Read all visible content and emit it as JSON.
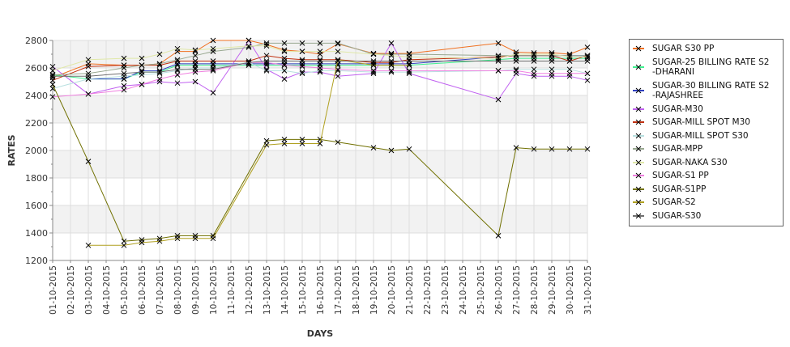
{
  "chart_data": {
    "type": "line",
    "title": "",
    "xlabel": "DAYS",
    "ylabel": "RATES",
    "ylim": [
      1200,
      2800
    ],
    "yticks": [
      1200,
      1400,
      1600,
      1800,
      2000,
      2200,
      2400,
      2600,
      2800
    ],
    "grid": true,
    "legend_position": "right",
    "categories": [
      "01-10-2015",
      "02-10-2015",
      "03-10-2015",
      "04-10-2015",
      "05-10-2015",
      "06-10-2015",
      "07-10-2015",
      "08-10-2015",
      "09-10-2015",
      "10-10-2015",
      "11-10-2015",
      "12-10-2015",
      "13-10-2015",
      "14-10-2015",
      "15-10-2015",
      "16-10-2015",
      "17-10-2015",
      "18-10-2015",
      "19-10-2015",
      "20-10-2015",
      "21-10-2015",
      "22-10-2015",
      "23-10-2015",
      "24-10-2015",
      "25-10-2015",
      "26-10-2015",
      "27-10-2015",
      "28-10-2015",
      "29-10-2015",
      "30-10-2015",
      "31-10-2015"
    ],
    "series": [
      {
        "name": "SUGAR S30 PP",
        "color": "#f07020",
        "values": [
          2530,
          null,
          2630,
          null,
          2620,
          2620,
          2630,
          2720,
          2720,
          2800,
          null,
          2800,
          2770,
          2730,
          2720,
          2700,
          2775,
          null,
          2705,
          2705,
          2705,
          null,
          null,
          null,
          null,
          2780,
          2715,
          2710,
          2710,
          2700,
          2750
        ]
      },
      {
        "name": "SUGAR-25 BILLING RATE S2\n-DHARANI",
        "color": "#40f090",
        "values": [
          2550,
          null,
          2520,
          null,
          2520,
          2570,
          2570,
          2620,
          2620,
          2620,
          null,
          2620,
          2620,
          2620,
          2620,
          2620,
          2620,
          null,
          2620,
          2620,
          2620,
          null,
          null,
          null,
          null,
          2660,
          2670,
          2670,
          2670,
          2670,
          2670
        ]
      },
      {
        "name": "SUGAR-30 BILLING RATE S2\n-RAJASHREE",
        "color": "#3040c0",
        "values": [
          null,
          null,
          2520,
          null,
          2520,
          2580,
          2580,
          2630,
          2630,
          2630,
          null,
          2630,
          2630,
          2630,
          2630,
          2630,
          2630,
          null,
          2630,
          2630,
          2630,
          null,
          null,
          null,
          null,
          2680,
          2690,
          2690,
          2690,
          2690,
          2690
        ]
      },
      {
        "name": "SUGAR-M30",
        "color": "#c060f0",
        "values": [
          2610,
          null,
          2410,
          null,
          2470,
          2480,
          2500,
          2490,
          2500,
          2420,
          null,
          2800,
          2590,
          2520,
          2570,
          2570,
          2540,
          null,
          2560,
          2780,
          2560,
          null,
          null,
          null,
          null,
          2370,
          2560,
          2540,
          2540,
          2540,
          2510
        ]
      },
      {
        "name": "SUGAR-MILL SPOT M30",
        "color": "#c03010",
        "values": [
          2510,
          null,
          2610,
          null,
          2620,
          2620,
          2620,
          2650,
          2650,
          2650,
          null,
          2650,
          2690,
          2670,
          2660,
          2660,
          2660,
          null,
          2640,
          2640,
          2660,
          null,
          null,
          null,
          null,
          2680,
          2690,
          2690,
          2690,
          2650,
          2690
        ]
      },
      {
        "name": "SUGAR-MILL SPOT S30",
        "color": "#b8e0e0",
        "values": [
          2450,
          null,
          2520,
          null,
          2540,
          2550,
          2560,
          2580,
          2600,
          2600,
          null,
          2640,
          2580,
          2580,
          2560,
          2580,
          2580,
          null,
          2570,
          2570,
          2570,
          null,
          null,
          null,
          null,
          2580,
          2590,
          2590,
          2590,
          2590,
          2560
        ]
      },
      {
        "name": "SUGAR-MPP",
        "color": "#98a890",
        "values": [
          2550,
          null,
          2560,
          null,
          2600,
          2620,
          2630,
          2660,
          2690,
          2720,
          null,
          2750,
          2780,
          2780,
          2780,
          2780,
          2780,
          null,
          2700,
          2700,
          2700,
          null,
          null,
          null,
          null,
          2690,
          2690,
          2690,
          2690,
          2690,
          2690
        ]
      },
      {
        "name": "SUGAR-NAKA S30",
        "color": "#e0e8a8",
        "values": [
          2580,
          null,
          2660,
          null,
          2670,
          2670,
          2700,
          2740,
          2730,
          2740,
          null,
          2760,
          2760,
          2720,
          2720,
          2720,
          2720,
          null,
          2700,
          2690,
          2680,
          null,
          null,
          null,
          null,
          2670,
          2700,
          2700,
          2700,
          2680,
          2680
        ]
      },
      {
        "name": "SUGAR-S1 PP",
        "color": "#f080e0",
        "values": [
          2390,
          null,
          2410,
          null,
          2440,
          2480,
          2520,
          2550,
          2570,
          2580,
          null,
          2640,
          2640,
          2620,
          2610,
          2600,
          2590,
          null,
          2580,
          2580,
          2580,
          null,
          null,
          null,
          null,
          2580,
          2580,
          2560,
          2560,
          2560,
          2560
        ]
      },
      {
        "name": "SUGAR-S1PP",
        "color": "#707000",
        "values": [
          2480,
          null,
          1920,
          null,
          1340,
          1350,
          1360,
          1380,
          1380,
          1380,
          null,
          null,
          2070,
          2080,
          2080,
          2080,
          2060,
          null,
          2020,
          2000,
          2010,
          null,
          null,
          null,
          null,
          1380,
          2020,
          2010,
          2010,
          2010,
          2010
        ]
      },
      {
        "name": "SUGAR-S2",
        "color": "#b0a020",
        "values": [
          null,
          null,
          1310,
          null,
          1310,
          1330,
          1340,
          1360,
          1360,
          1360,
          null,
          null,
          2040,
          2050,
          2050,
          2050,
          2660,
          null,
          2620,
          2620,
          2620,
          null,
          null,
          null,
          null,
          null,
          null,
          null,
          null,
          null,
          null
        ]
      },
      {
        "name": "SUGAR-S30",
        "color": "#707070",
        "values": [
          2540,
          null,
          2540,
          null,
          2560,
          2570,
          2570,
          2590,
          2590,
          2590,
          null,
          2640,
          2650,
          2650,
          2650,
          2650,
          2650,
          null,
          2650,
          2650,
          2650,
          null,
          null,
          null,
          null,
          2650,
          2650,
          2650,
          2650,
          2650,
          2650
        ]
      }
    ]
  }
}
